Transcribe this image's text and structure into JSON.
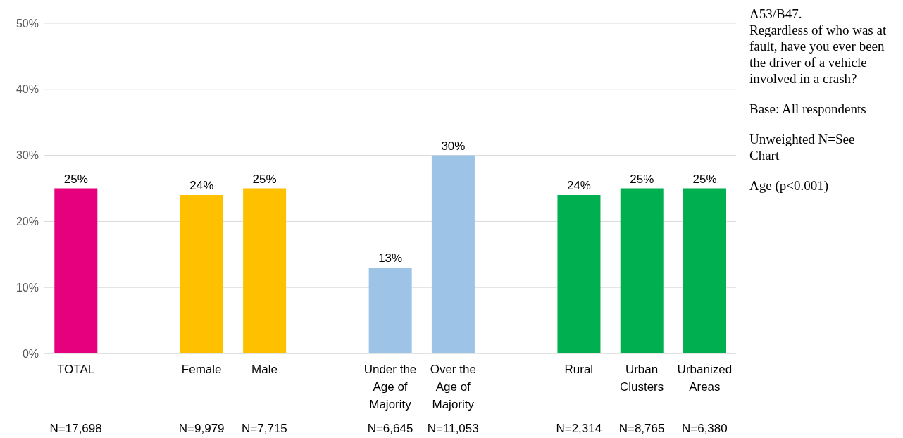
{
  "chart_data": {
    "type": "bar",
    "categories": [
      "TOTAL",
      null,
      "Female",
      "Male",
      null,
      "Under the Age of Majority",
      "Over the Age of Majority",
      null,
      "Rural",
      "Urban Clusters",
      "Urbanized Areas"
    ],
    "values": [
      25,
      null,
      24,
      25,
      null,
      13,
      30,
      null,
      24,
      25,
      25
    ],
    "colors": [
      "#e6007e",
      null,
      "#ffc000",
      "#ffc000",
      null,
      "#9dc3e6",
      "#9dc3e6",
      null,
      "#00b050",
      "#00b050",
      "#00b050"
    ],
    "value_labels": [
      "25%",
      null,
      "24%",
      "25%",
      null,
      "13%",
      "30%",
      null,
      "24%",
      "25%",
      "25%"
    ],
    "ylim": [
      0,
      50
    ],
    "yticks": [
      {
        "value": 0,
        "label": "0%"
      },
      {
        "value": 10,
        "label": "10%"
      },
      {
        "value": 20,
        "label": "20%"
      },
      {
        "value": 30,
        "label": "30%"
      },
      {
        "value": 40,
        "label": "40%"
      },
      {
        "value": 50,
        "label": "50%"
      }
    ],
    "grid": "y",
    "legend": false,
    "annotations": [
      "N=17,698",
      "N=9,979",
      "N=7,715",
      "N=6,645",
      "N=11,053",
      "N=2,314",
      "N=8,765",
      "N=6,380",
      "A53/B47.\nRegardless of who was at fault, have you ever been the driver of a vehicle involved in a crash?",
      "Base: All respondents",
      "Unweighted N=See Chart",
      "Age (p<0.001)"
    ]
  }
}
